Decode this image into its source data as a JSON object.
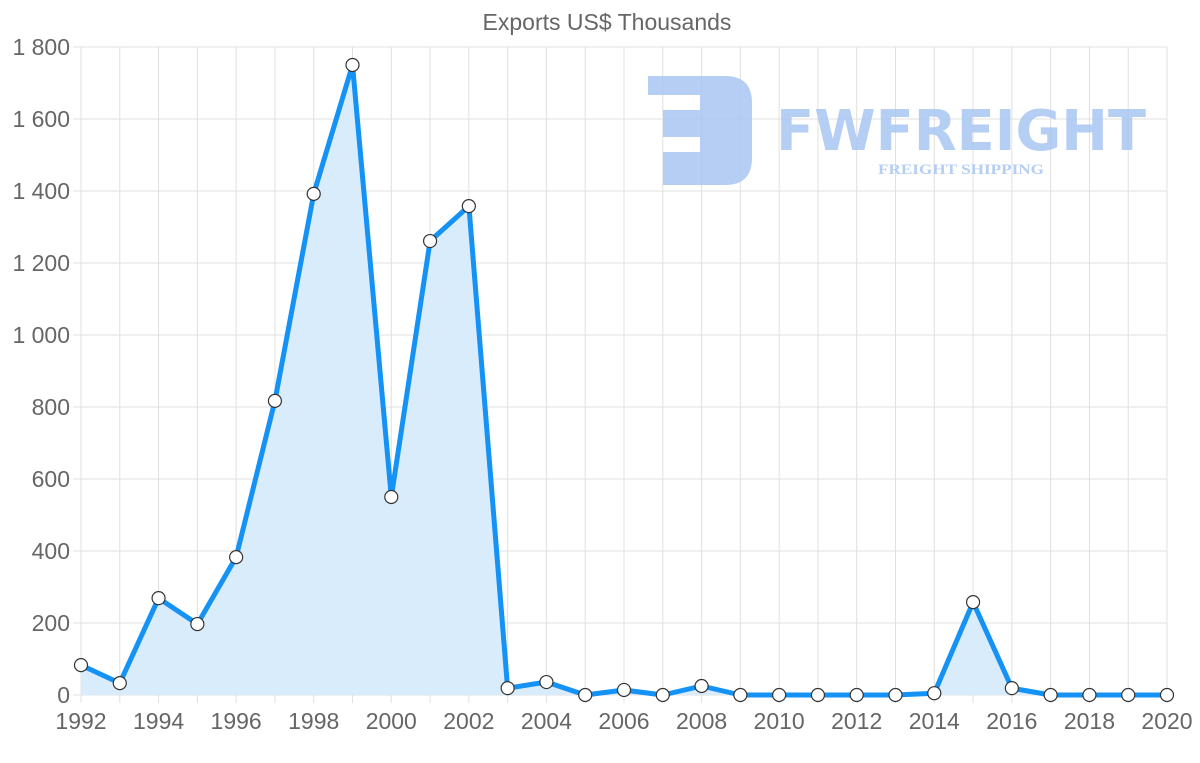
{
  "chart_data": {
    "type": "area",
    "title": "Exports US$ Thousands",
    "xlabel": "",
    "ylabel": "",
    "x": [
      1992,
      1993,
      1994,
      1995,
      1996,
      1997,
      1998,
      1999,
      2000,
      2001,
      2002,
      2003,
      2004,
      2005,
      2006,
      2007,
      2008,
      2009,
      2010,
      2011,
      2012,
      2013,
      2014,
      2015,
      2016,
      2017,
      2018,
      2019,
      2020
    ],
    "series": [
      {
        "name": "Exports US$ Thousands",
        "values": [
          83,
          33,
          269,
          197,
          383,
          817,
          1392,
          1750,
          550,
          1261,
          1358,
          19,
          36,
          0,
          14,
          0,
          25,
          0,
          0,
          0,
          0,
          0,
          5,
          258,
          19,
          0,
          0,
          0,
          0
        ]
      }
    ],
    "xlim": [
      1992,
      2020
    ],
    "ylim": [
      0,
      1800
    ],
    "yticks": [
      0,
      200,
      400,
      600,
      800,
      1000,
      1200,
      1400,
      1600,
      1800
    ],
    "ytick_labels": [
      "0",
      "200",
      "400",
      "600",
      "800",
      "1 000",
      "1 200",
      "1 400",
      "1 600",
      "1 800"
    ],
    "xticks": [
      1992,
      1994,
      1996,
      1998,
      2000,
      2002,
      2004,
      2006,
      2008,
      2010,
      2012,
      2014,
      2016,
      2018,
      2020
    ],
    "xtick_labels": [
      "1992",
      "1994",
      "1996",
      "1998",
      "2000",
      "2002",
      "2004",
      "2006",
      "2008",
      "2010",
      "2012",
      "2014",
      "2016",
      "2018",
      "2020"
    ],
    "grid": true,
    "legend": "none",
    "colors": {
      "line": "#1592f5",
      "fill": "#d9ecfc",
      "point_fill": "#ffffff",
      "point_stroke": "#333333",
      "grid": "#e0e0e0"
    }
  },
  "watermark": {
    "brand": "FWFREIGHT",
    "tagline": "FREIGHT SHIPPING",
    "color": "#a9c6f2"
  }
}
